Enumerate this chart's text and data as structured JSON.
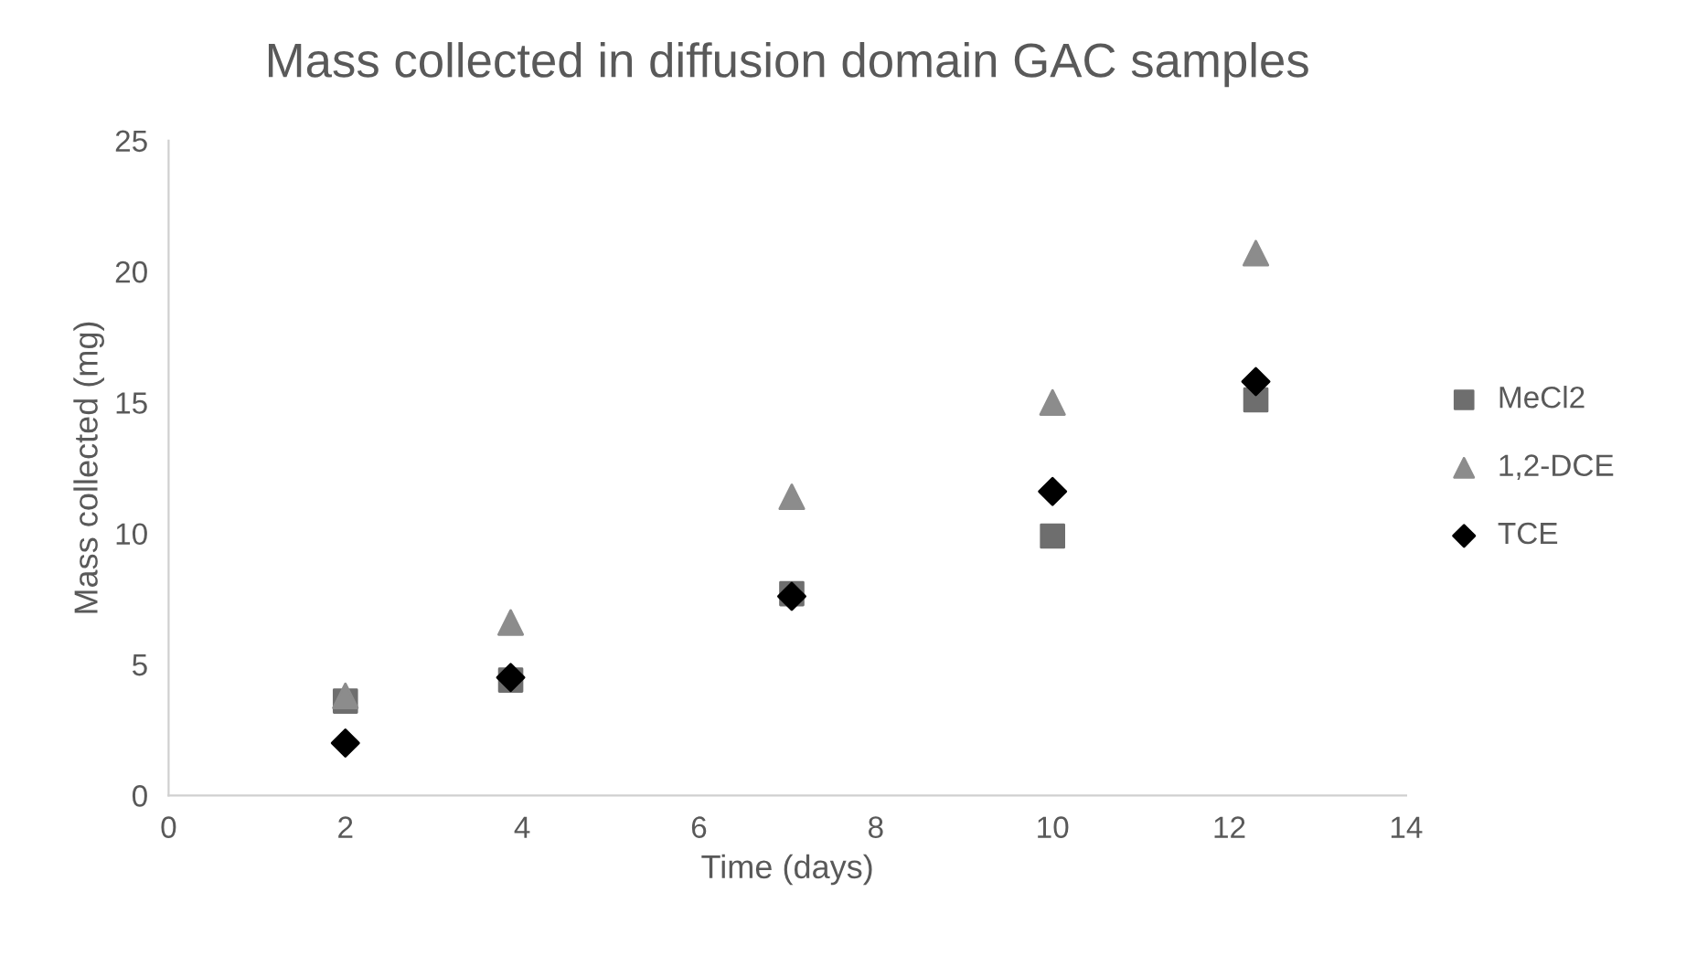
{
  "chart_data": {
    "type": "scatter",
    "title": "Mass collected in diffusion domain GAC samples",
    "xlabel": "Time (days)",
    "ylabel": "Mass collected (mg)",
    "xlim": [
      0,
      14
    ],
    "xticks": [
      0,
      2,
      4,
      6,
      8,
      10,
      12,
      14
    ],
    "ylim": [
      0,
      25
    ],
    "yticks": [
      0,
      5,
      10,
      15,
      20,
      25
    ],
    "grid": false,
    "legend": "right",
    "series": [
      {
        "name": "MeCl2",
        "color": "#6e6e6e",
        "marker": "square",
        "x": [
          2,
          3.87,
          7.05,
          10,
          12.3
        ],
        "values": [
          3.6,
          4.4,
          7.7,
          9.9,
          15.1
        ]
      },
      {
        "name": "1,2-DCE",
        "color": "#8c8c8c",
        "marker": "triangle",
        "x": [
          2,
          3.87,
          7.05,
          10,
          12.3
        ],
        "values": [
          3.8,
          6.6,
          11.4,
          15.0,
          20.7
        ]
      },
      {
        "name": "TCE",
        "color": "#000000",
        "marker": "diamond",
        "x": [
          2,
          3.87,
          7.05,
          10,
          12.3
        ],
        "values": [
          2.0,
          4.5,
          7.6,
          11.6,
          15.8
        ]
      }
    ]
  }
}
